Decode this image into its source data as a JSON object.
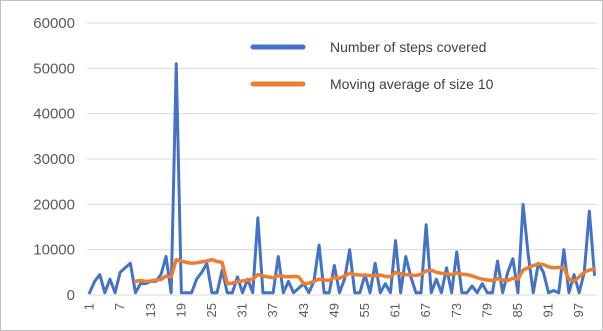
{
  "chart_data": {
    "type": "line",
    "title": "",
    "xlabel": "",
    "ylabel": "",
    "ylim": [
      0,
      60000
    ],
    "y_ticks": [
      0,
      10000,
      20000,
      30000,
      40000,
      50000,
      60000
    ],
    "y_tick_labels": [
      "0",
      "10000",
      "20000",
      "30000",
      "40000",
      "50000",
      "60000"
    ],
    "x_tick_labels": [
      "1",
      "7",
      "13",
      "19",
      "25",
      "31",
      "37",
      "43",
      "49",
      "55",
      "61",
      "67",
      "73",
      "79",
      "85",
      "91",
      "97"
    ],
    "grid": true,
    "legend_position": "top-right",
    "x": [
      1,
      2,
      3,
      4,
      5,
      6,
      7,
      8,
      9,
      10,
      11,
      12,
      13,
      14,
      15,
      16,
      17,
      18,
      19,
      20,
      21,
      22,
      23,
      24,
      25,
      26,
      27,
      28,
      29,
      30,
      31,
      32,
      33,
      34,
      35,
      36,
      37,
      38,
      39,
      40,
      41,
      42,
      43,
      44,
      45,
      46,
      47,
      48,
      49,
      50,
      51,
      52,
      53,
      54,
      55,
      56,
      57,
      58,
      59,
      60,
      61,
      62,
      63,
      64,
      65,
      66,
      67,
      68,
      69,
      70,
      71,
      72,
      73,
      74,
      75,
      76,
      77,
      78,
      79,
      80,
      81,
      82,
      83,
      84,
      85,
      86,
      87,
      88,
      89,
      90,
      91,
      92,
      93,
      94,
      95,
      96,
      97,
      98,
      99,
      100
    ],
    "series": [
      {
        "name": "Number of steps covered",
        "color": "#4472c4",
        "values": [
          500,
          3000,
          4500,
          500,
          3500,
          500,
          5000,
          6000,
          7000,
          500,
          2500,
          2500,
          3000,
          3000,
          4500,
          8500,
          500,
          51000,
          500,
          500,
          500,
          3500,
          5000,
          7000,
          500,
          500,
          5500,
          500,
          500,
          4000,
          500,
          3500,
          500,
          17000,
          500,
          500,
          500,
          8500,
          500,
          3000,
          500,
          1500,
          2500,
          500,
          3000,
          11000,
          500,
          500,
          6500,
          500,
          3500,
          10000,
          500,
          500,
          4500,
          500,
          7000,
          500,
          2500,
          500,
          12000,
          500,
          8500,
          4000,
          500,
          500,
          15500,
          500,
          3500,
          500,
          6000,
          500,
          9500,
          500,
          500,
          2000,
          500,
          2500,
          500,
          500,
          7500,
          500,
          5000,
          8000,
          500,
          20000,
          9000,
          500,
          7000,
          5000,
          500,
          1000,
          500,
          10000,
          500,
          4500,
          500,
          5000,
          18500,
          4500
        ]
      },
      {
        "name": "Moving average of size 10",
        "color": "#ed7d31",
        "values": [
          null,
          null,
          null,
          null,
          null,
          null,
          null,
          null,
          null,
          3000,
          3200,
          3000,
          3100,
          3300,
          3400,
          4200,
          4000,
          7800,
          7500,
          7200,
          7000,
          7100,
          7300,
          7500,
          7800,
          7400,
          7200,
          2500,
          2600,
          3000,
          3100,
          3300,
          3500,
          4500,
          4200,
          4000,
          3800,
          4300,
          4100,
          4000,
          4100,
          4000,
          2500,
          2600,
          3000,
          3500,
          3300,
          3200,
          3900,
          3700,
          4200,
          4800,
          4500,
          4400,
          4300,
          4300,
          4200,
          4400,
          4100,
          4000,
          5000,
          4700,
          4500,
          4400,
          4300,
          4600,
          5300,
          5500,
          5000,
          4800,
          4700,
          4500,
          4900,
          4600,
          4500,
          4200,
          3800,
          3500,
          3300,
          3200,
          3600,
          3300,
          3200,
          3700,
          3500,
          5500,
          6000,
          6500,
          6800,
          6700,
          6200,
          6000,
          6100,
          6000,
          3500,
          3000,
          4000,
          5000,
          5500,
          5700
        ]
      }
    ]
  }
}
